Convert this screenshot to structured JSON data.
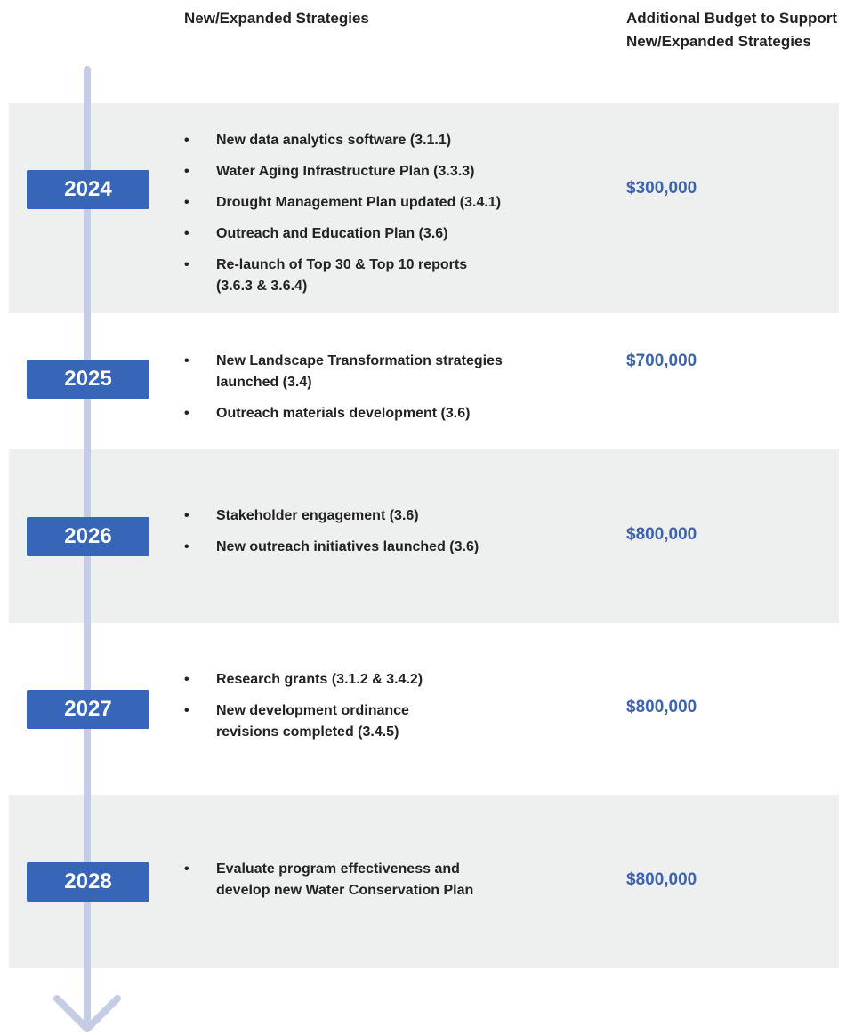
{
  "header": {
    "strategies": "New/Expanded Strategies",
    "budget": "Additional Budget to Support New/Expanded Strategies"
  },
  "rows": [
    {
      "year": "2024",
      "items": [
        "New data analytics software (3.1.1)",
        "Water Aging Infrastructure Plan (3.3.3)",
        "Drought Management Plan updated (3.4.1)",
        "Outreach and Education Plan (3.6)",
        "Re-launch of Top 30 & Top 10 reports\n(3.6.3 & 3.6.4)"
      ],
      "budget": "$300,000"
    },
    {
      "year": "2025",
      "items": [
        "New Landscape Transformation strategies\nlaunched (3.4)",
        "Outreach materials development (3.6)"
      ],
      "budget": "$700,000"
    },
    {
      "year": "2026",
      "items": [
        "Stakeholder engagement (3.6)",
        "New outreach initiatives launched (3.6)"
      ],
      "budget": "$800,000"
    },
    {
      "year": "2027",
      "items": [
        "Research grants (3.1.2 & 3.4.2)",
        "New development ordinance\nrevisions completed (3.4.5)"
      ],
      "budget": "$800,000"
    },
    {
      "year": "2028",
      "items": [
        "Evaluate program effectiveness and\ndevelop new Water Conservation Plan"
      ],
      "budget": "$800,000"
    }
  ]
}
